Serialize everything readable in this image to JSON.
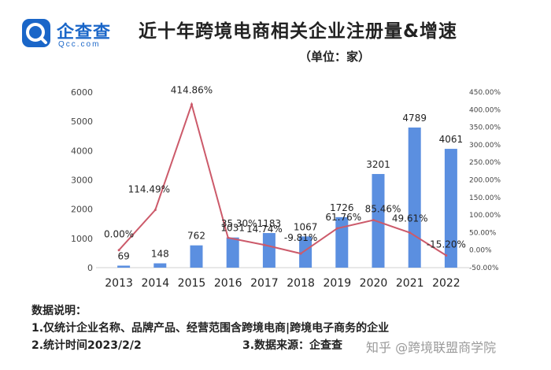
{
  "header": {
    "logo_text": "企查查",
    "logo_sub": "Qcc.com",
    "title": "近十年跨境电商相关企业注册量&增速",
    "subtitle": "（单位：家）"
  },
  "colors": {
    "bar": "#5b8fe0",
    "line": "#cc5a6a",
    "brand": "#1a66c8"
  },
  "chart_data": {
    "type": "bar",
    "categories": [
      "2013",
      "2014",
      "2015",
      "2016",
      "2017",
      "2018",
      "2019",
      "2020",
      "2021",
      "2022"
    ],
    "series": [
      {
        "values": [
          69,
          148,
          762,
          1031,
          1183,
          1067,
          1726,
          3201,
          4789,
          4061
        ],
        "axis": "left",
        "render": "bar"
      },
      {
        "values": [
          0.0,
          114.49,
          414.86,
          35.3,
          14.74,
          -9.81,
          61.76,
          85.46,
          49.61,
          -15.2
        ],
        "axis": "right",
        "render": "line"
      }
    ],
    "bar_labels": [
      "69",
      "148",
      "762",
      "1031",
      "1183",
      "1067",
      "1726",
      "3201",
      "4789",
      "4061"
    ],
    "line_labels": [
      "0.00%",
      "114.49%",
      "414.86%",
      "35.30%",
      "14.74%",
      "-9.81%",
      "61.76%",
      "85.46%",
      "49.61%",
      "-15.20%"
    ],
    "y_left": {
      "ylim": [
        0,
        6000
      ],
      "ticks": [
        "0",
        "1000",
        "2000",
        "3000",
        "4000",
        "5000",
        "6000"
      ]
    },
    "y_right": {
      "ylim": [
        -50,
        450
      ],
      "ticks": [
        "-50.00%",
        "0.00%",
        "50.00%",
        "100.00%",
        "150.00%",
        "200.00%",
        "250.00%",
        "300.00%",
        "350.00%",
        "400.00%",
        "450.00%"
      ]
    },
    "grid": false
  },
  "notes": {
    "heading": "数据说明：",
    "line1": "1.仅统计企业名称、品牌产品、经营范围含跨境电商|跨境电子商务的企业",
    "line2": "2.统计时间2023/2/2",
    "line3": "3.数据来源：企查查"
  },
  "watermark": "知乎 @跨境联盟商学院"
}
